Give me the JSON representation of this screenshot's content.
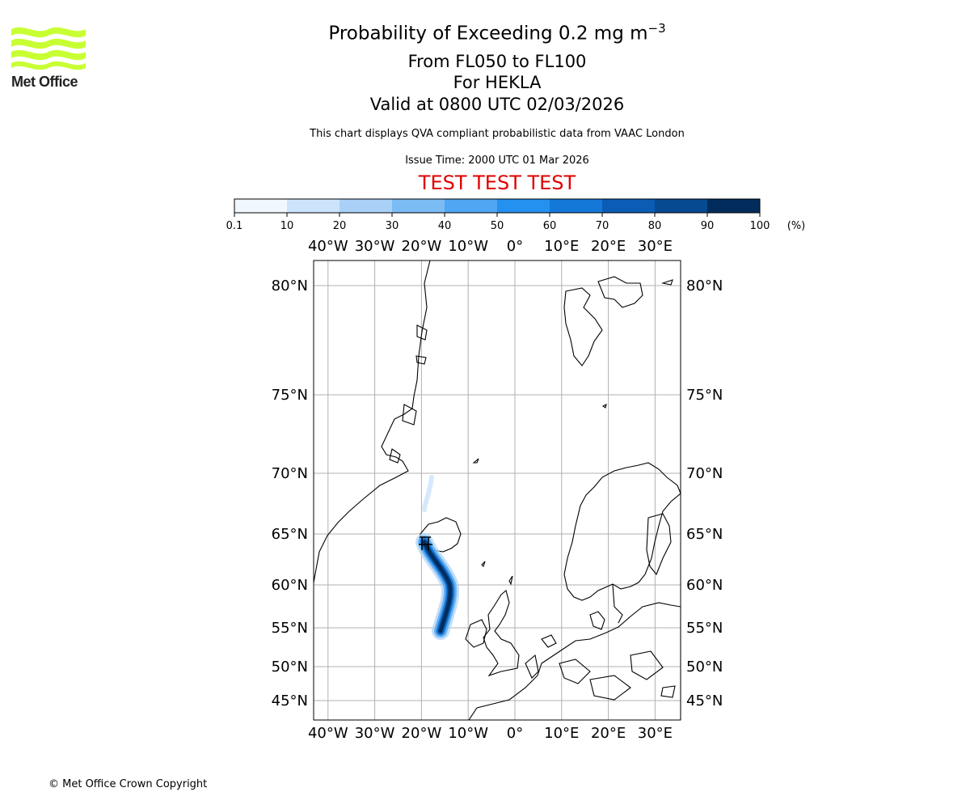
{
  "logo": {
    "name": "Met Office",
    "color": "#c8ff33"
  },
  "header": {
    "title": "Probability of Exceeding 0.2 mg m",
    "title_superscript": "−3",
    "levels": "From FL050 to FL100",
    "volcano": "For HEKLA",
    "valid": "Valid at 0800 UTC 02/03/2026",
    "note": "This chart displays QVA compliant probabilistic data from VAAC London",
    "issue": "Issue Time: 2000 UTC 01 Mar 2026",
    "test_banner": "TEST TEST TEST",
    "test_color": "#e00000"
  },
  "colorbar": {
    "ticks": [
      "0.1",
      "10",
      "20",
      "30",
      "40",
      "50",
      "60",
      "70",
      "80",
      "90",
      "100"
    ],
    "unit": "(%)",
    "colors": [
      "#f0f7ff",
      "#cce4fb",
      "#a9d1f7",
      "#7cbcf5",
      "#4fa6f3",
      "#2490ef",
      "#1478d9",
      "#0b5cb4",
      "#064a91",
      "#022c5c"
    ]
  },
  "map": {
    "lon_labels": [
      {
        "lon": -40,
        "text": "40°W"
      },
      {
        "lon": -30,
        "text": "30°W"
      },
      {
        "lon": -20,
        "text": "20°W"
      },
      {
        "lon": -10,
        "text": "10°W"
      },
      {
        "lon": 0,
        "text": "0°"
      },
      {
        "lon": 10,
        "text": "10°E"
      },
      {
        "lon": 20,
        "text": "20°E"
      },
      {
        "lon": 30,
        "text": "30°E"
      }
    ],
    "lat_labels": [
      {
        "lat": 80,
        "text": "80°N"
      },
      {
        "lat": 75,
        "text": "75°N"
      },
      {
        "lat": 70,
        "text": "70°N"
      },
      {
        "lat": 65,
        "text": "65°N"
      },
      {
        "lat": 60,
        "text": "60°N"
      },
      {
        "lat": 55,
        "text": "55°N"
      },
      {
        "lat": 50,
        "text": "50°N"
      },
      {
        "lat": 45,
        "text": "45°N"
      }
    ],
    "grid_color": "#b0b0b0",
    "source": {
      "name": "HEKLA",
      "lat": 64.0,
      "lon": -19.7
    }
  },
  "footer": {
    "copyright": "© Met Office Crown Copyright"
  }
}
